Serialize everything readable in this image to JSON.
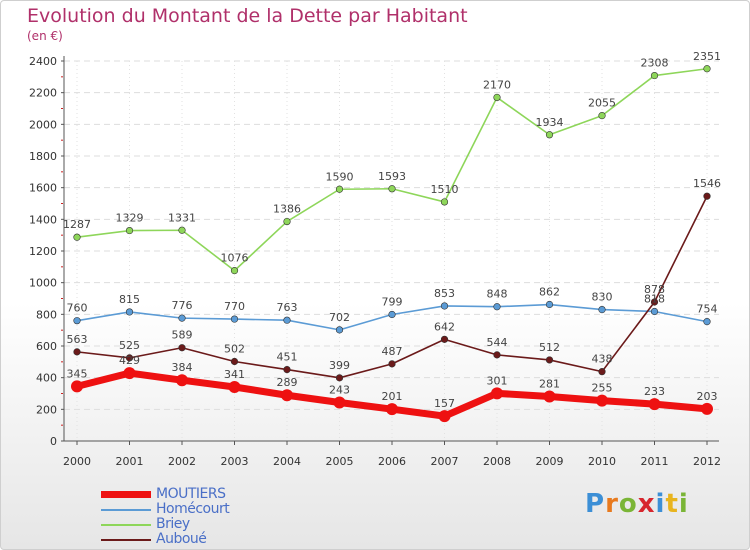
{
  "title": "Evolution du Montant de la Dette par Habitant",
  "unit_label": "(en €)",
  "brand": {
    "letters": [
      "P",
      "r",
      "o",
      "x",
      "i",
      "t",
      "i"
    ],
    "colors": [
      "#3c8fd6",
      "#e87a1e",
      "#7ab536",
      "#d7262e",
      "#3c8fd6",
      "#e8b41e",
      "#7ab536"
    ]
  },
  "chart_data": {
    "type": "line",
    "x": [
      "2000",
      "2001",
      "2002",
      "2003",
      "2004",
      "2005",
      "2006",
      "2007",
      "2008",
      "2009",
      "2010",
      "2011",
      "2012"
    ],
    "ylim": [
      0,
      2400
    ],
    "yticks": [
      0,
      200,
      400,
      600,
      800,
      1000,
      1200,
      1400,
      1600,
      1800,
      2000,
      2200,
      2400
    ],
    "grid": true,
    "legend": "bottom-left",
    "series": [
      {
        "name": "MOUTIERS",
        "color": "#ee1111",
        "values": [
          345,
          429,
          384,
          341,
          289,
          243,
          201,
          157,
          301,
          281,
          255,
          233,
          203
        ]
      },
      {
        "name": "Homécourt",
        "color": "#5b9bd5",
        "values": [
          760,
          815,
          776,
          770,
          763,
          702,
          799,
          853,
          848,
          862,
          830,
          818,
          754
        ]
      },
      {
        "name": "Briey",
        "color": "#8ed65a",
        "values": [
          1287,
          1329,
          1331,
          1076,
          1386,
          1590,
          1593,
          1510,
          2170,
          1934,
          2055,
          2308,
          2351
        ]
      },
      {
        "name": "Auboué",
        "color": "#6b1a1a",
        "values": [
          563,
          525,
          589,
          502,
          451,
          399,
          487,
          642,
          544,
          512,
          438,
          878,
          1546
        ]
      }
    ]
  }
}
